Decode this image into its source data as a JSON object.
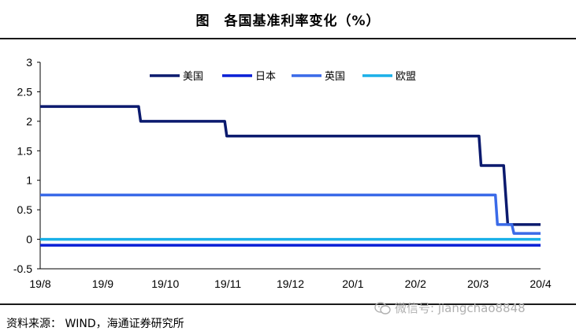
{
  "title": "图　各国基准利率变化（%）",
  "source": "资料来源：  WIND，海通证券研究所",
  "watermark": "微信号: jiangchao8848",
  "chart_data": {
    "type": "line",
    "title": "图　各国基准利率变化（%）",
    "xlabel": "",
    "ylabel": "",
    "ylim": [
      -0.5,
      3
    ],
    "yticks": [
      "3",
      "2.5",
      "2",
      "1.5",
      "1",
      "0.5",
      "0",
      "-0.5"
    ],
    "xticks": [
      "19/8",
      "19/9",
      "19/10",
      "19/11",
      "19/12",
      "20/1",
      "20/2",
      "20/3",
      "20/4"
    ],
    "xlim": [
      "2019-08-01",
      "2020-04-01"
    ],
    "grid": false,
    "legend_position": "top",
    "series": [
      {
        "name": "美国",
        "color": "#0b1a6e",
        "points": [
          [
            "2019-08-01",
            2.25
          ],
          [
            "2019-09-18",
            2.25
          ],
          [
            "2019-09-19",
            2.0
          ],
          [
            "2019-10-30",
            2.0
          ],
          [
            "2019-10-31",
            1.75
          ],
          [
            "2020-03-02",
            1.75
          ],
          [
            "2020-03-03",
            1.25
          ],
          [
            "2020-03-14",
            1.25
          ],
          [
            "2020-03-16",
            0.25
          ],
          [
            "2020-04-01",
            0.25
          ]
        ]
      },
      {
        "name": "日本",
        "color": "#0a1fd6",
        "points": [
          [
            "2019-08-01",
            -0.1
          ],
          [
            "2020-04-01",
            -0.1
          ]
        ]
      },
      {
        "name": "英国",
        "color": "#3a6ae8",
        "points": [
          [
            "2019-08-01",
            0.75
          ],
          [
            "2020-03-10",
            0.75
          ],
          [
            "2020-03-11",
            0.25
          ],
          [
            "2020-03-18",
            0.25
          ],
          [
            "2020-03-19",
            0.1
          ],
          [
            "2020-04-01",
            0.1
          ]
        ]
      },
      {
        "name": "欧盟",
        "color": "#1ab0e8",
        "points": [
          [
            "2019-08-01",
            0.0
          ],
          [
            "2020-04-01",
            0.0
          ]
        ]
      }
    ]
  }
}
